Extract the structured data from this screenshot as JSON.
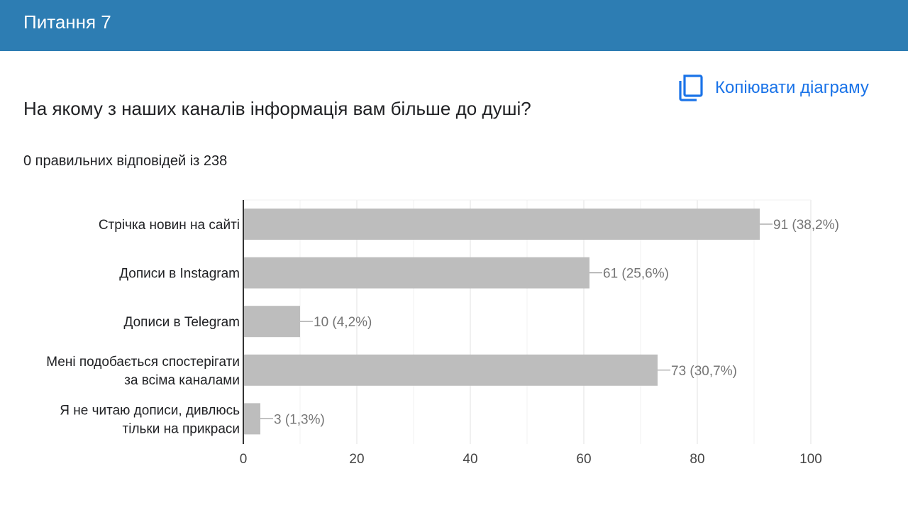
{
  "header": {
    "title": "Питання 7"
  },
  "toolbar": {
    "copy_chart_label": "Копіювати діаграму",
    "copy_icon": "copy-icon"
  },
  "question": {
    "text": "На якому з наших каналів інформація вам більше до душі?",
    "score_text": "0 правильних відповідей із 238"
  },
  "colors": {
    "header": "#2d7db3",
    "bar": "#bdbdbd",
    "link": "#1a73e8"
  },
  "chart_data": {
    "type": "bar",
    "orientation": "horizontal",
    "categories": [
      [
        "Стрічка новин на сайті"
      ],
      [
        "Дописи в Instagram"
      ],
      [
        "Дописи в Telegram"
      ],
      [
        "Мені подобається спостерігати",
        "за всіма каналами"
      ],
      [
        "Я не читаю дописи, дивлюсь",
        "тільки на прикраси"
      ]
    ],
    "values": [
      91,
      61,
      10,
      73,
      3
    ],
    "data_labels": [
      "91 (38,2%)",
      "61 (25,6%)",
      "10 (4,2%)",
      "73 (30,7%)",
      "3 (1,3%)"
    ],
    "xlim": [
      0,
      100
    ],
    "x_ticks": [
      0,
      20,
      40,
      60,
      80,
      100
    ],
    "grid": true,
    "legend": "none"
  }
}
